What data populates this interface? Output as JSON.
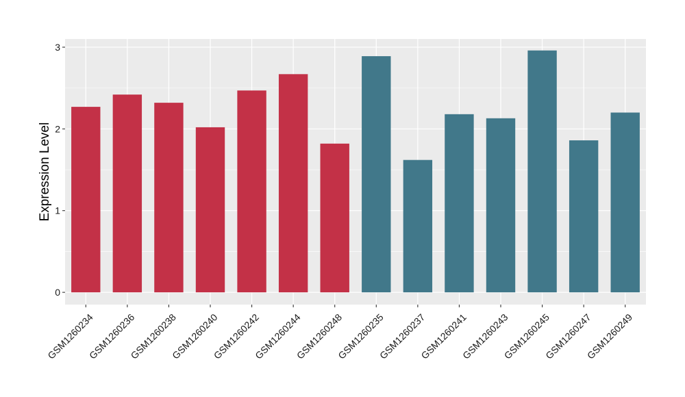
{
  "chart_data": {
    "type": "bar",
    "title": "",
    "xlabel": "",
    "ylabel": "Expression Level",
    "ylim": [
      -0.15,
      3.1
    ],
    "yticks": [
      "0",
      "1",
      "2",
      "3"
    ],
    "grid": true,
    "categories": [
      "GSM1260234",
      "GSM1260236",
      "GSM1260238",
      "GSM1260240",
      "GSM1260242",
      "GSM1260244",
      "GSM1260248",
      "GSM1260235",
      "GSM1260237",
      "GSM1260241",
      "GSM1260243",
      "GSM1260245",
      "GSM1260247",
      "GSM1260249"
    ],
    "values": [
      2.27,
      2.42,
      2.32,
      2.02,
      2.47,
      2.67,
      1.82,
      2.89,
      1.62,
      2.18,
      2.13,
      2.96,
      1.86,
      2.2
    ],
    "groups": [
      0,
      0,
      0,
      0,
      0,
      0,
      0,
      1,
      1,
      1,
      1,
      1,
      1,
      1
    ],
    "group_colors": [
      "#c33147",
      "#41788a"
    ],
    "panel_color": "#ebebeb",
    "grid_color": "#ffffff"
  }
}
